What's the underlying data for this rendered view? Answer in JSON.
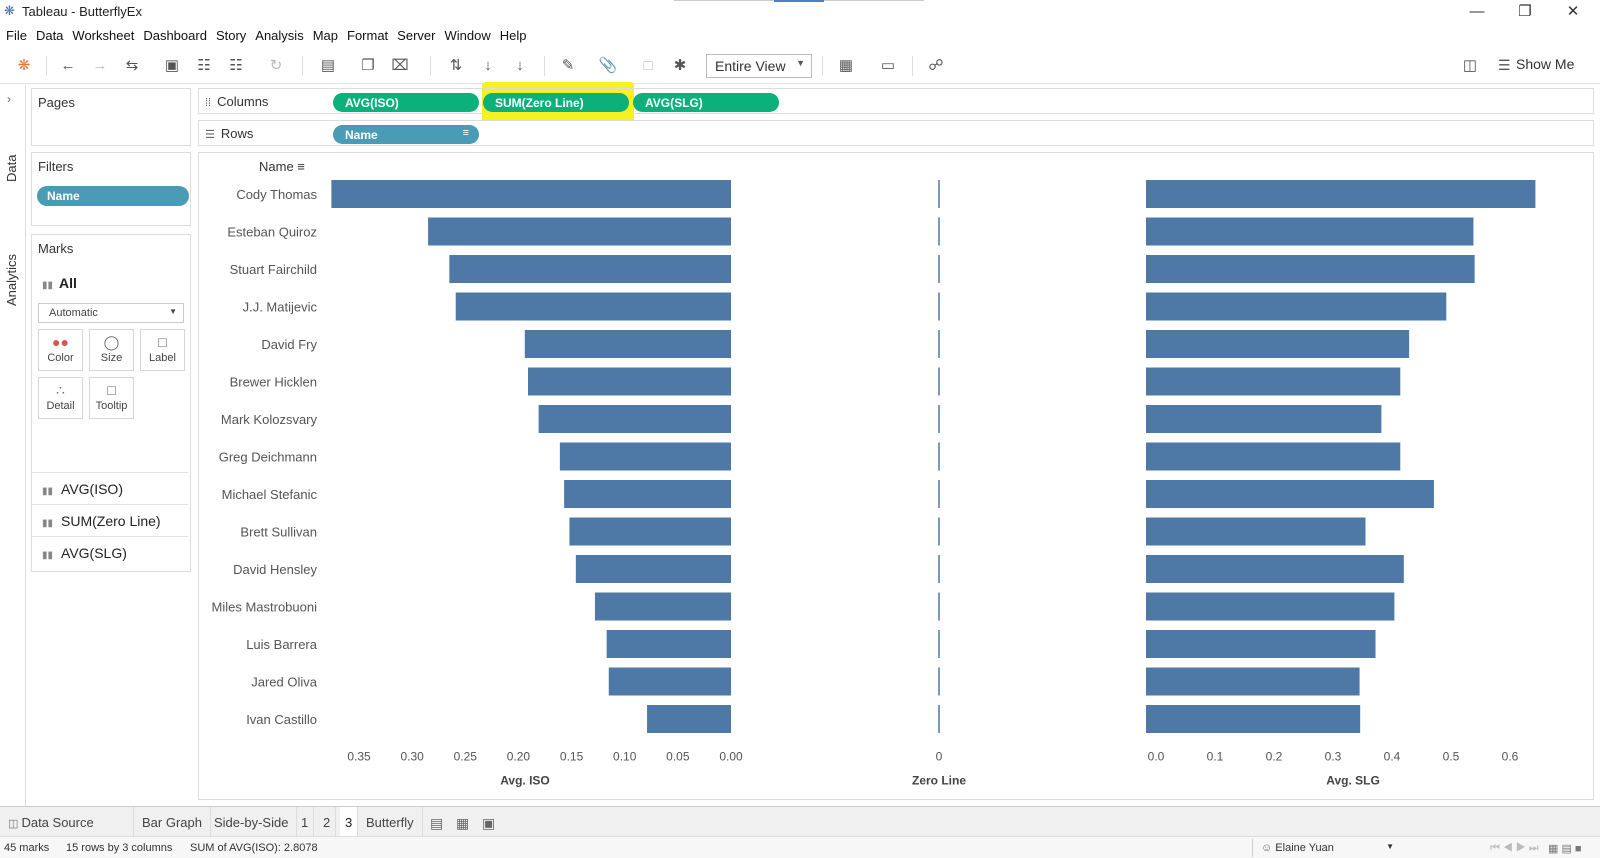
{
  "window": {
    "title": "Tableau - ButterflyEx",
    "minimize": "—",
    "restore": "❐",
    "close": "✕"
  },
  "menu": [
    "File",
    "Data",
    "Worksheet",
    "Dashboard",
    "Story",
    "Analysis",
    "Map",
    "Format",
    "Server",
    "Window",
    "Help"
  ],
  "toolbar": {
    "view_fit": "Entire View",
    "show_me": "Show Me"
  },
  "side_tabs": {
    "data": "Data",
    "analytics": "Analytics"
  },
  "pages": {
    "title": "Pages"
  },
  "filters": {
    "title": "Filters",
    "items": [
      "Name"
    ]
  },
  "marks": {
    "title": "Marks",
    "all": "All",
    "mark_type": "Automatic",
    "buttons": [
      "Color",
      "Size",
      "Label",
      "Detail",
      "Tooltip"
    ],
    "fields": [
      "AVG(ISO)",
      "SUM(Zero Line)",
      "AVG(SLG)"
    ]
  },
  "shelves": {
    "columns_label": "Columns",
    "rows_label": "Rows",
    "columns": [
      "AVG(ISO)",
      "SUM(Zero Line)",
      "AVG(SLG)"
    ],
    "rows": [
      "Name"
    ]
  },
  "chart_data": {
    "type": "bar",
    "row_header": "Name",
    "categories": [
      "Cody Thomas",
      "Esteban Quiroz",
      "Stuart Fairchild",
      "J.J. Matijevic",
      "David Fry",
      "Brewer Hicklen",
      "Mark Kolozsvary",
      "Greg Deichmann",
      "Michael Stefanic",
      "Brett Sullivan",
      "David Hensley",
      "Miles Mastrobuoni",
      "Luis Barrera",
      "Jared Oliva",
      "Ivan Castillo"
    ],
    "series": [
      {
        "name": "Avg. ISO",
        "values": [
          0.376,
          0.285,
          0.265,
          0.259,
          0.194,
          0.191,
          0.181,
          0.161,
          0.157,
          0.152,
          0.146,
          0.128,
          0.117,
          0.115,
          0.079
        ],
        "xlim": [
          0,
          0.35
        ],
        "reversed": true,
        "ticks": [
          "0.35",
          "0.30",
          "0.25",
          "0.20",
          "0.15",
          "0.10",
          "0.05",
          "0.00"
        ],
        "xlabel": "Avg. ISO"
      },
      {
        "name": "Zero Line",
        "values": [
          0,
          0,
          0,
          0,
          0,
          0,
          0,
          0,
          0,
          0,
          0,
          0,
          0,
          0,
          0
        ],
        "ticks": [
          "0"
        ],
        "xlabel": "Zero Line"
      },
      {
        "name": "Avg. SLG",
        "values": [
          0.66,
          0.555,
          0.557,
          0.509,
          0.446,
          0.431,
          0.399,
          0.431,
          0.488,
          0.372,
          0.437,
          0.421,
          0.389,
          0.362,
          0.363
        ],
        "xlim": [
          0,
          0.6
        ],
        "reversed": false,
        "ticks": [
          "0.0",
          "0.1",
          "0.2",
          "0.3",
          "0.4",
          "0.5",
          "0.6"
        ],
        "xlabel": "Avg. SLG"
      }
    ],
    "bar_color": "#4e79a7",
    "grid": false
  },
  "sheet_tabs": {
    "data_source": "Data Source",
    "sheets": [
      "Bar Graph",
      "Side-by-Side",
      "1",
      "2",
      "3",
      "Butterfly"
    ],
    "active": "3"
  },
  "status": {
    "marks": "45 marks",
    "rows_cols": "15 rows by 3 columns",
    "sum": "SUM of AVG(ISO): 2.8078",
    "user": "Elaine Yuan"
  },
  "colors": {
    "pill_measure": "#0bb07a",
    "pill_dimension": "#4a9bb5",
    "highlight": "#f7f21d"
  }
}
